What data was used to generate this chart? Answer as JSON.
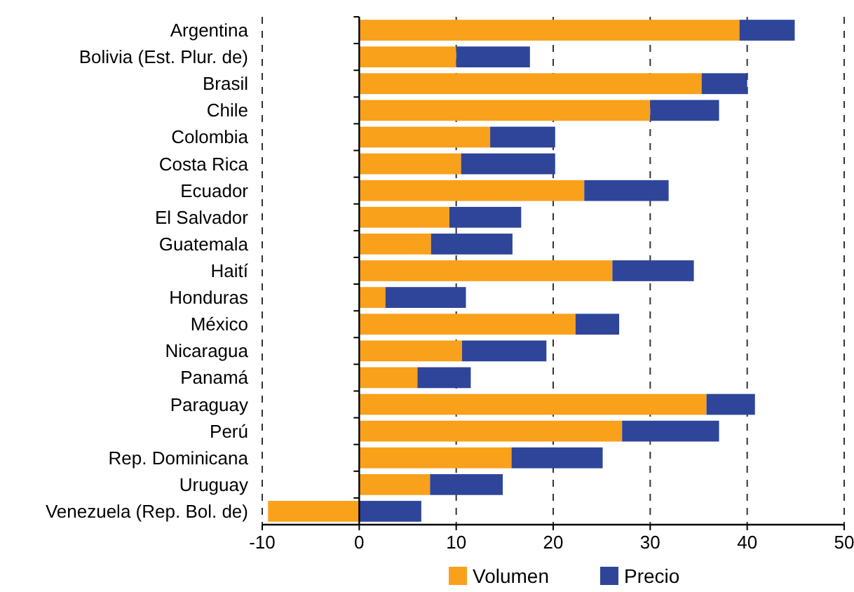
{
  "chart_data": {
    "type": "bar",
    "orientation": "horizontal",
    "stacked": true,
    "categories": [
      "Argentina",
      "Bolivia (Est. Plur. de)",
      "Brasil",
      "Chile",
      "Colombia",
      "Costa Rica",
      "Ecuador",
      "El Salvador",
      "Guatemala",
      "Haití",
      "Honduras",
      "México",
      "Nicaragua",
      "Panamá",
      "Paraguay",
      "Perú",
      "Rep. Dominicana",
      "Uruguay",
      "Venezuela (Rep. Bol. de)"
    ],
    "series": [
      {
        "name": "Volumen",
        "color": "#f9a11b",
        "values": [
          39.2,
          10.0,
          35.3,
          30.0,
          13.5,
          10.5,
          23.2,
          9.3,
          7.4,
          26.1,
          2.7,
          22.3,
          10.6,
          6.0,
          35.8,
          27.1,
          15.7,
          7.3,
          -9.4
        ]
      },
      {
        "name": "Precio",
        "color": "#2e459a",
        "values": [
          5.7,
          7.6,
          4.7,
          7.1,
          6.7,
          9.7,
          8.7,
          7.4,
          8.4,
          8.4,
          8.3,
          4.5,
          8.7,
          5.5,
          5.0,
          10.0,
          9.4,
          7.5,
          6.4
        ]
      }
    ],
    "xlim": [
      -10,
      50
    ],
    "xticks": [
      -10,
      0,
      10,
      20,
      30,
      40,
      50
    ],
    "grid": "x",
    "legend": "bottom"
  }
}
